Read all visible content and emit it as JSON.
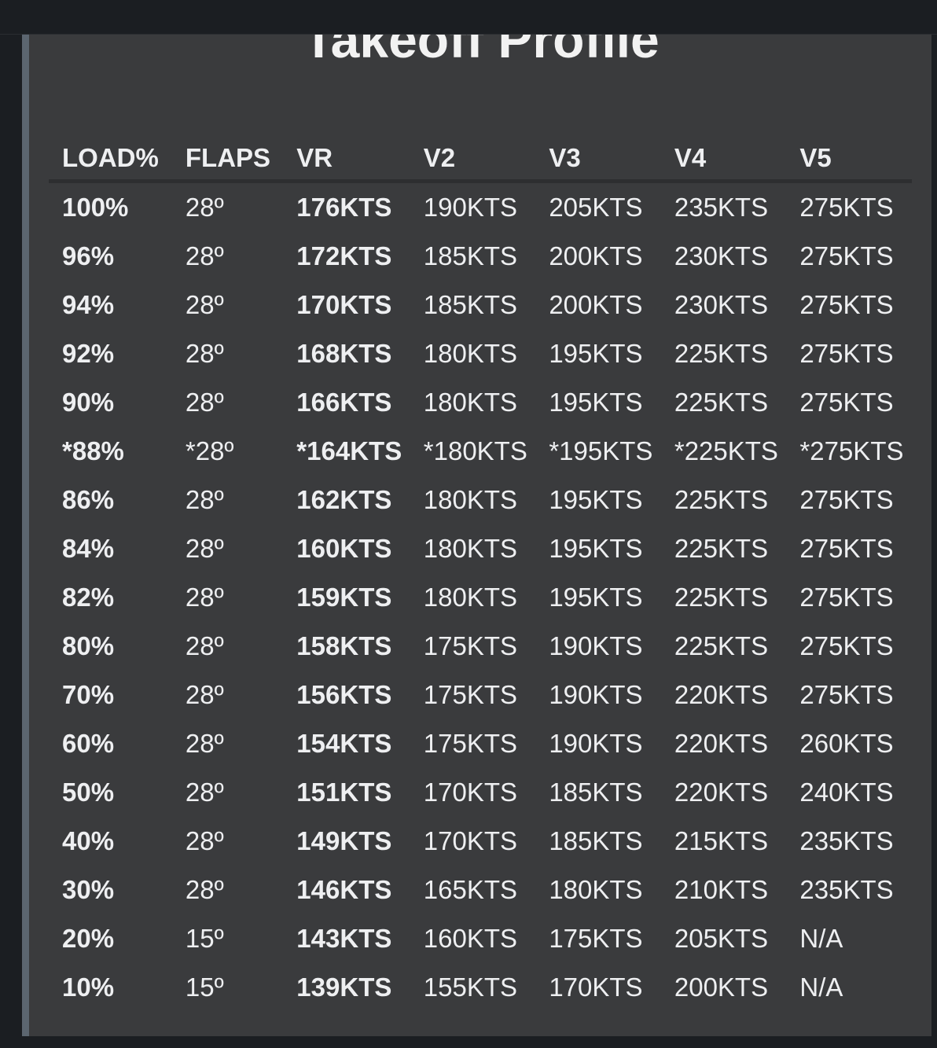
{
  "title": "Takeoff Profile",
  "columns": [
    "LOAD%",
    "FLAPS",
    "VR",
    "V2",
    "V3",
    "V4",
    "V5"
  ],
  "rows": [
    [
      "100%",
      "28º",
      "176KTS",
      "190KTS",
      "205KTS",
      "235KTS",
      "275KTS"
    ],
    [
      "96%",
      "28º",
      "172KTS",
      "185KTS",
      "200KTS",
      "230KTS",
      "275KTS"
    ],
    [
      "94%",
      "28º",
      "170KTS",
      "185KTS",
      "200KTS",
      "230KTS",
      "275KTS"
    ],
    [
      "92%",
      "28º",
      "168KTS",
      "180KTS",
      "195KTS",
      "225KTS",
      "275KTS"
    ],
    [
      "90%",
      "28º",
      "166KTS",
      "180KTS",
      "195KTS",
      "225KTS",
      "275KTS"
    ],
    [
      "*88%",
      "*28º",
      "*164KTS",
      "*180KTS",
      "*195KTS",
      "*225KTS",
      "*275KTS"
    ],
    [
      "86%",
      "28º",
      "162KTS",
      "180KTS",
      "195KTS",
      "225KTS",
      "275KTS"
    ],
    [
      "84%",
      "28º",
      "160KTS",
      "180KTS",
      "195KTS",
      "225KTS",
      "275KTS"
    ],
    [
      "82%",
      "28º",
      "159KTS",
      "180KTS",
      "195KTS",
      "225KTS",
      "275KTS"
    ],
    [
      "80%",
      "28º",
      "158KTS",
      "175KTS",
      "190KTS",
      "225KTS",
      "275KTS"
    ],
    [
      "70%",
      "28º",
      "156KTS",
      "175KTS",
      "190KTS",
      "220KTS",
      "275KTS"
    ],
    [
      "60%",
      "28º",
      "154KTS",
      "175KTS",
      "190KTS",
      "220KTS",
      "260KTS"
    ],
    [
      "50%",
      "28º",
      "151KTS",
      "170KTS",
      "185KTS",
      "220KTS",
      "240KTS"
    ],
    [
      "40%",
      "28º",
      "149KTS",
      "170KTS",
      "185KTS",
      "215KTS",
      "235KTS"
    ],
    [
      "30%",
      "28º",
      "146KTS",
      "165KTS",
      "180KTS",
      "210KTS",
      "235KTS"
    ],
    [
      "20%",
      "15º",
      "143KTS",
      "160KTS",
      "175KTS",
      "205KTS",
      "N/A"
    ],
    [
      "10%",
      "15º",
      "139KTS",
      "155KTS",
      "170KTS",
      "200KTS",
      "N/A"
    ]
  ]
}
